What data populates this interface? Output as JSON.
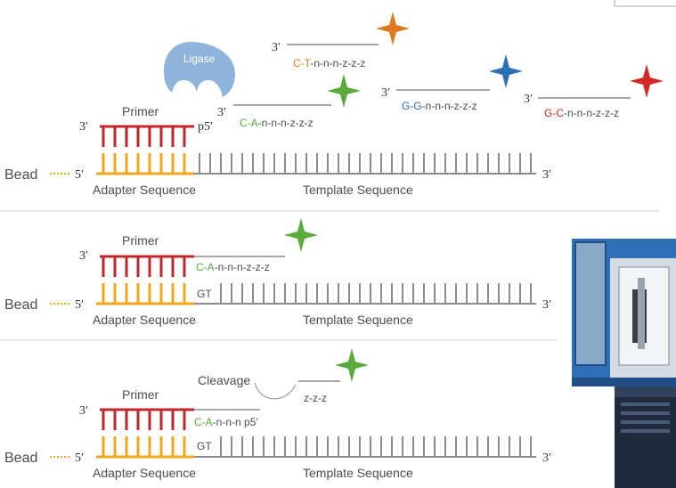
{
  "colors": {
    "primer": "#c0272d",
    "adapter": "#f2a51f",
    "template": "#8c8c8c",
    "green": "#5aab3c",
    "orange": "#e07a1e",
    "blue": "#2e6fb7",
    "red": "#d42a27",
    "ligase": "#8fb3da",
    "bead_link": "#f2a51f"
  },
  "labels": {
    "bead": "Bead",
    "primer": "Primer",
    "adapter": "Adapter Sequence",
    "template": "Template Sequence",
    "ligase": "Ligase",
    "cleavage": "Cleavage",
    "p5": "p5′",
    "three": "3′",
    "five": "5′",
    "gt": "GT"
  },
  "probes": {
    "green_prefix": "C-A",
    "green_suffix": "-n-n-n-z-z-z",
    "orange_prefix": "C-T",
    "orange_suffix": "-n-n-n-z-z-z",
    "blue_prefix": "G-G",
    "blue_suffix": "-n-n-n-z-z-z",
    "red_prefix": "G-C",
    "red_suffix": "-n-n-n-z-z-z",
    "cleaved_prefix": "C-A",
    "cleaved_suffix": "-n-n-n ",
    "cleaved_p5": "p5′",
    "fragment": "z-z-z"
  },
  "icons": {
    "probe_label": "four-point-star-icon",
    "enzyme": "ligase-shape",
    "instrument": "sequencer-instrument-photo"
  }
}
